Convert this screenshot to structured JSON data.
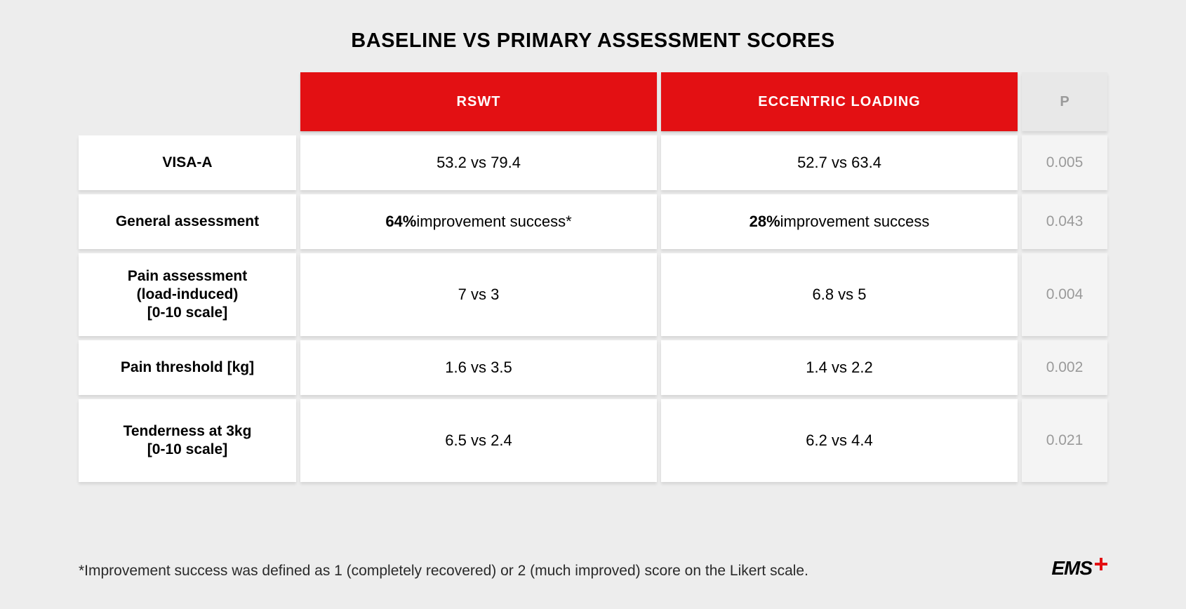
{
  "title": "BASELINE VS PRIMARY ASSESSMENT SCORES",
  "columns": {
    "rswt": "RSWT",
    "eccentric": "ECCENTRIC LOADING",
    "p": "P"
  },
  "rows": [
    {
      "label": "VISA-A",
      "rswt_html": "53.2 vs 79.4",
      "ecc_html": "52.7 vs 63.4",
      "p": "0.005",
      "multiline": false
    },
    {
      "label": "General assessment",
      "rswt_html": "<span class='b'>64%</span> improvement success*",
      "ecc_html": "<span class='b'>28%</span> improvement success",
      "p": "0.043",
      "multiline": false
    },
    {
      "label": "Pain assessment<br>(load-induced)<br>[0-10 scale]",
      "rswt_html": "7 vs 3",
      "ecc_html": "6.8 vs 5",
      "p": "0.004",
      "multiline": true
    },
    {
      "label": "Pain threshold [kg]",
      "rswt_html": "1.6 vs 3.5",
      "ecc_html": "1.4 vs 2.2",
      "p": "0.002",
      "multiline": false
    },
    {
      "label": "Tenderness at 3kg<br>[0-10 scale]",
      "rswt_html": "6.5 vs 2.4",
      "ecc_html": "6.2 vs 4.4",
      "p": "0.021",
      "multiline": true
    }
  ],
  "footnote": "*Improvement success was defined as 1 (completely recovered) or 2 (much improved) score on the Likert scale.",
  "logo": "EMS"
}
